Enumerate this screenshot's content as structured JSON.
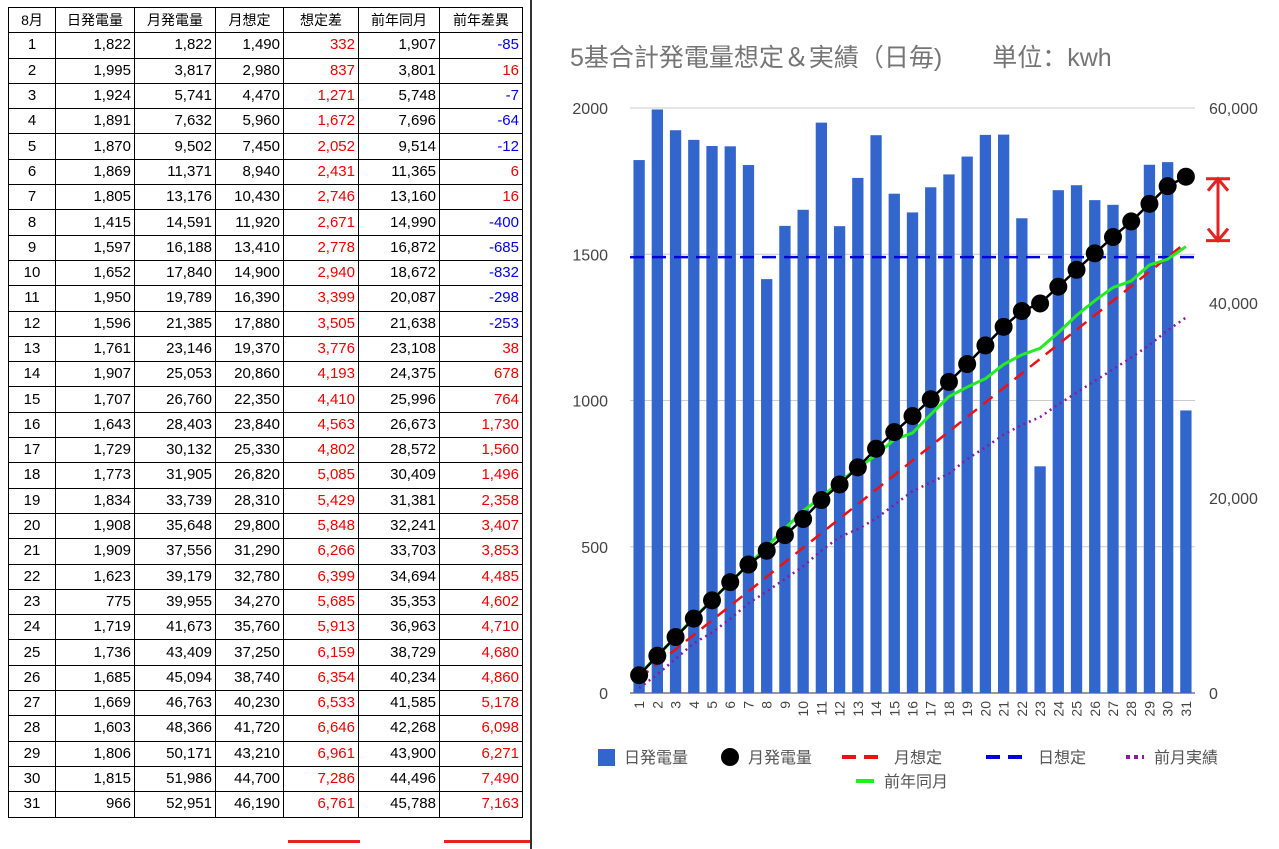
{
  "table": {
    "headers": [
      "8月",
      "日発電量",
      "月発電量",
      "月想定",
      "想定差",
      "前年同月",
      "前年差異"
    ],
    "rows": [
      [
        "1",
        "1,822",
        "1,822",
        "1,490",
        "332",
        "1,907",
        "-85"
      ],
      [
        "2",
        "1,995",
        "3,817",
        "2,980",
        "837",
        "3,801",
        "16"
      ],
      [
        "3",
        "1,924",
        "5,741",
        "4,470",
        "1,271",
        "5,748",
        "-7"
      ],
      [
        "4",
        "1,891",
        "7,632",
        "5,960",
        "1,672",
        "7,696",
        "-64"
      ],
      [
        "5",
        "1,870",
        "9,502",
        "7,450",
        "2,052",
        "9,514",
        "-12"
      ],
      [
        "6",
        "1,869",
        "11,371",
        "8,940",
        "2,431",
        "11,365",
        "6"
      ],
      [
        "7",
        "1,805",
        "13,176",
        "10,430",
        "2,746",
        "13,160",
        "16"
      ],
      [
        "8",
        "1,415",
        "14,591",
        "11,920",
        "2,671",
        "14,990",
        "-400"
      ],
      [
        "9",
        "1,597",
        "16,188",
        "13,410",
        "2,778",
        "16,872",
        "-685"
      ],
      [
        "10",
        "1,652",
        "17,840",
        "14,900",
        "2,940",
        "18,672",
        "-832"
      ],
      [
        "11",
        "1,950",
        "19,789",
        "16,390",
        "3,399",
        "20,087",
        "-298"
      ],
      [
        "12",
        "1,596",
        "21,385",
        "17,880",
        "3,505",
        "21,638",
        "-253"
      ],
      [
        "13",
        "1,761",
        "23,146",
        "19,370",
        "3,776",
        "23,108",
        "38"
      ],
      [
        "14",
        "1,907",
        "25,053",
        "20,860",
        "4,193",
        "24,375",
        "678"
      ],
      [
        "15",
        "1,707",
        "26,760",
        "22,350",
        "4,410",
        "25,996",
        "764"
      ],
      [
        "16",
        "1,643",
        "28,403",
        "23,840",
        "4,563",
        "26,673",
        "1,730"
      ],
      [
        "17",
        "1,729",
        "30,132",
        "25,330",
        "4,802",
        "28,572",
        "1,560"
      ],
      [
        "18",
        "1,773",
        "31,905",
        "26,820",
        "5,085",
        "30,409",
        "1,496"
      ],
      [
        "19",
        "1,834",
        "33,739",
        "28,310",
        "5,429",
        "31,381",
        "2,358"
      ],
      [
        "20",
        "1,908",
        "35,648",
        "29,800",
        "5,848",
        "32,241",
        "3,407"
      ],
      [
        "21",
        "1,909",
        "37,556",
        "31,290",
        "6,266",
        "33,703",
        "3,853"
      ],
      [
        "22",
        "1,623",
        "39,179",
        "32,780",
        "6,399",
        "34,694",
        "4,485"
      ],
      [
        "23",
        "775",
        "39,955",
        "34,270",
        "5,685",
        "35,353",
        "4,602"
      ],
      [
        "24",
        "1,719",
        "41,673",
        "35,760",
        "5,913",
        "36,963",
        "4,710"
      ],
      [
        "25",
        "1,736",
        "43,409",
        "37,250",
        "6,159",
        "38,729",
        "4,680"
      ],
      [
        "26",
        "1,685",
        "45,094",
        "38,740",
        "6,354",
        "40,234",
        "4,860"
      ],
      [
        "27",
        "1,669",
        "46,763",
        "40,230",
        "6,533",
        "41,585",
        "5,178"
      ],
      [
        "28",
        "1,603",
        "48,366",
        "41,720",
        "6,646",
        "42,268",
        "6,098"
      ],
      [
        "29",
        "1,806",
        "50,171",
        "43,210",
        "6,961",
        "43,900",
        "6,271"
      ],
      [
        "30",
        "1,815",
        "51,986",
        "44,700",
        "7,286",
        "44,496",
        "7,490"
      ],
      [
        "31",
        "966",
        "52,951",
        "46,190",
        "6,761",
        "45,788",
        "7,163"
      ]
    ]
  },
  "colors": {
    "bar": "#3366cc",
    "monthly_actual": "#000000",
    "monthly_plan": "#ee1111",
    "daily_plan": "#0000dd",
    "prev_month": "#8b1a9b",
    "prev_year": "#22ee22",
    "positive_text": "#ee0000",
    "negative_text": "#0000ee",
    "arrow": "#e32222",
    "grid": "#cccccc"
  },
  "chart_data": {
    "type": "bar",
    "title": "5基合計発電量想定＆実績（日毎)　　単位：kwh",
    "categories": [
      "1",
      "2",
      "3",
      "4",
      "5",
      "6",
      "7",
      "8",
      "9",
      "10",
      "11",
      "12",
      "13",
      "14",
      "15",
      "16",
      "17",
      "18",
      "19",
      "20",
      "21",
      "22",
      "23",
      "24",
      "25",
      "26",
      "27",
      "28",
      "29",
      "30",
      "31"
    ],
    "y_left": {
      "min": 0,
      "max": 2000,
      "ticks": [
        "0",
        "500",
        "1000",
        "1500",
        "2000"
      ]
    },
    "y_right": {
      "min": 0,
      "max": 60000,
      "ticks": [
        "0",
        "20,000",
        "40,000",
        "60,000"
      ]
    },
    "grid": true,
    "legend_position": "bottom",
    "series": [
      {
        "name": "日発電量",
        "kind": "bar",
        "axis": "left",
        "values": [
          1822,
          1995,
          1924,
          1891,
          1870,
          1869,
          1805,
          1415,
          1597,
          1652,
          1950,
          1596,
          1761,
          1907,
          1707,
          1643,
          1729,
          1773,
          1834,
          1908,
          1909,
          1623,
          775,
          1719,
          1736,
          1685,
          1669,
          1603,
          1806,
          1815,
          966
        ]
      },
      {
        "name": "月発電量",
        "kind": "line-dots",
        "axis": "right",
        "values": [
          1822,
          3817,
          5741,
          7632,
          9502,
          11371,
          13176,
          14591,
          16188,
          17840,
          19789,
          21385,
          23146,
          25053,
          26760,
          28403,
          30132,
          31905,
          33739,
          35648,
          37556,
          39179,
          39955,
          41673,
          43409,
          45094,
          46763,
          48366,
          50171,
          51986,
          52951
        ]
      },
      {
        "name": "月想定",
        "kind": "dashed",
        "axis": "right",
        "values": [
          1490,
          2980,
          4470,
          5960,
          7450,
          8940,
          10430,
          11920,
          13410,
          14900,
          16390,
          17880,
          19370,
          20860,
          22350,
          23840,
          25330,
          26820,
          28310,
          29800,
          31290,
          32780,
          34270,
          35760,
          37250,
          38740,
          40230,
          41720,
          43210,
          44700,
          46190
        ]
      },
      {
        "name": "日想定",
        "kind": "dashed-flat",
        "axis": "left",
        "value": 1490
      },
      {
        "name": "前月実績",
        "kind": "dotted",
        "axis": "right",
        "values": [
          500,
          1900,
          3500,
          5100,
          6200,
          7600,
          9200,
          10400,
          11700,
          13000,
          14600,
          16000,
          16800,
          17900,
          19300,
          20700,
          21600,
          22500,
          24000,
          25200,
          26500,
          27500,
          28300,
          29600,
          30800,
          32000,
          33200,
          34400,
          35700,
          37200,
          38500
        ]
      },
      {
        "name": "前年同月",
        "kind": "line",
        "axis": "right",
        "values": [
          1907,
          3801,
          5748,
          7696,
          9514,
          11365,
          13160,
          14990,
          16872,
          18672,
          20087,
          21638,
          23108,
          24375,
          25996,
          26673,
          28572,
          30409,
          31381,
          32241,
          33703,
          34694,
          35353,
          36963,
          38729,
          40234,
          41585,
          42268,
          43900,
          44496,
          45788
        ]
      }
    ]
  }
}
